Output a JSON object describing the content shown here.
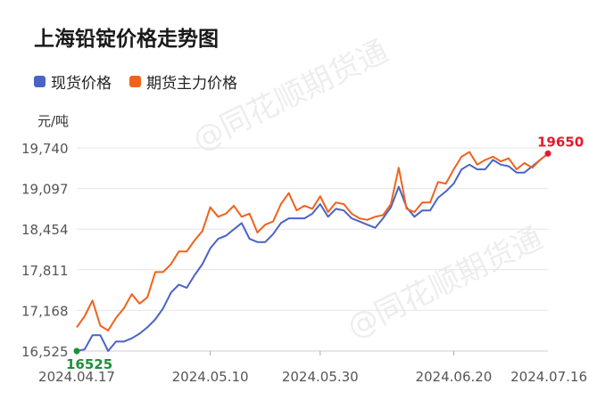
{
  "title": "上海铅锭价格走势图",
  "watermark": "@同花顺期货通",
  "colors": {
    "spot": "#4a63c4",
    "futures": "#f0621b",
    "start_marker": "#1f8f3a",
    "end_marker": "#e8182c",
    "grid": "#e6e6e6",
    "axis_text": "#555555"
  },
  "chart_data": {
    "type": "line",
    "ylabel": "元/吨",
    "yticks": [
      16525,
      17168,
      17811,
      18454,
      19097,
      19740
    ],
    "ytick_labels": [
      "16,525",
      "17,168",
      "17,811",
      "18,454",
      "19,097",
      "19,740"
    ],
    "ylim": [
      16525,
      19740
    ],
    "xticks": [
      "2024.04.17",
      "2024.05.10",
      "2024.05.30",
      "2024.06.20",
      "2024.07.16"
    ],
    "xtick_index": [
      0,
      17,
      31,
      48,
      69
    ],
    "grid": true,
    "legend_position": "top-left",
    "series": [
      {
        "name": "现货价格",
        "values": [
          16525,
          16550,
          16775,
          16775,
          16525,
          16675,
          16675,
          16725,
          16800,
          16900,
          17025,
          17200,
          17450,
          17575,
          17525,
          17725,
          17900,
          18150,
          18300,
          18350,
          18450,
          18550,
          18300,
          18250,
          18250,
          18375,
          18550,
          18625,
          18625,
          18625,
          18700,
          18850,
          18650,
          18775,
          18750,
          18625,
          18575,
          18525,
          18475,
          18625,
          18800,
          19125,
          18800,
          18650,
          18750,
          18750,
          18950,
          19050,
          19175,
          19400,
          19475,
          19400,
          19400,
          19550,
          19475,
          19450,
          19350,
          19350,
          19450,
          19550,
          19650
        ]
      },
      {
        "name": "期货主力价格",
        "values": [
          16900,
          17075,
          17325,
          16925,
          16850,
          17050,
          17200,
          17425,
          17275,
          17375,
          17775,
          17775,
          17900,
          18100,
          18100,
          18275,
          18425,
          18800,
          18650,
          18700,
          18825,
          18650,
          18700,
          18400,
          18525,
          18575,
          18850,
          19025,
          18750,
          18825,
          18775,
          18975,
          18725,
          18875,
          18850,
          18700,
          18625,
          18600,
          18650,
          18675,
          18850,
          19425,
          18775,
          18725,
          18875,
          18875,
          19200,
          19175,
          19400,
          19600,
          19675,
          19475,
          19550,
          19600,
          19525,
          19575,
          19400,
          19500,
          19425,
          19550,
          19650
        ]
      }
    ],
    "annotations": [
      {
        "label": "16525",
        "series": 0,
        "index": 0
      },
      {
        "label": "19650",
        "series": 1,
        "index": 60
      }
    ]
  }
}
